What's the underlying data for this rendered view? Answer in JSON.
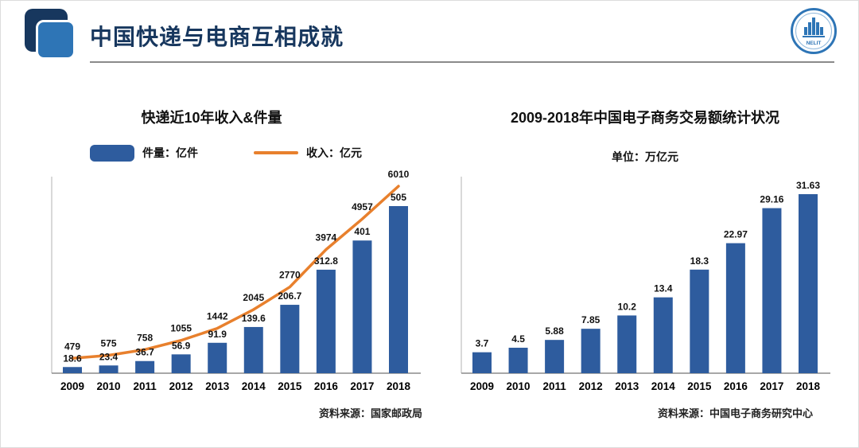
{
  "header": {
    "title": "中国快递与电商互相成就",
    "logo_text": "NELIT"
  },
  "colors": {
    "bar_blue": "#2E5C9E",
    "line_orange": "#E8802D",
    "navy": "#17375E",
    "logo_blue": "#2E75B6",
    "label_text": "#111111",
    "axis_gray": "#8c8c8c"
  },
  "chart_data": [
    {
      "type": "bar",
      "title": "快递近10年收入&件量",
      "categories": [
        "2009",
        "2010",
        "2011",
        "2012",
        "2013",
        "2014",
        "2015",
        "2016",
        "2017",
        "2018"
      ],
      "series": [
        {
          "name": "件量：亿件",
          "type": "bar",
          "values": [
            18.6,
            23.4,
            36.7,
            56.9,
            91.9,
            139.6,
            206.7,
            312.8,
            401,
            505
          ]
        },
        {
          "name": "收入：亿元",
          "type": "line",
          "values": [
            479,
            575,
            758,
            1055,
            1442,
            2045,
            2770,
            3974,
            4957,
            6010
          ]
        }
      ],
      "legend_position": "top",
      "grid": false,
      "source": "资料来源：国家邮政局"
    },
    {
      "type": "bar",
      "title": "2009-2018年中国电子商务交易额统计状况",
      "unit_label": "单位：万亿元",
      "categories": [
        "2009",
        "2010",
        "2011",
        "2012",
        "2013",
        "2014",
        "2015",
        "2016",
        "2017",
        "2018"
      ],
      "values": [
        3.7,
        4.5,
        5.88,
        7.85,
        10.2,
        13.4,
        18.3,
        22.97,
        29.16,
        31.63
      ],
      "grid": false,
      "source": "资料来源：中国电子商务研究中心"
    }
  ]
}
